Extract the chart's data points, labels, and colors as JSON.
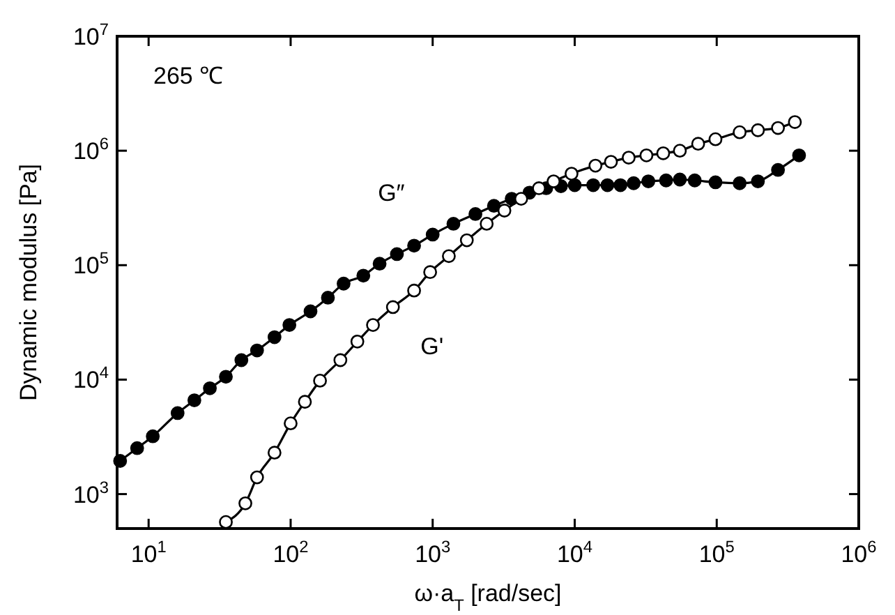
{
  "chart_data": {
    "type": "line",
    "title": "265 ℃",
    "xlabel": "ω·a$_{T}$ [rad/sec]",
    "ylabel": "Dynamic modulus [Pa]",
    "log": "xy",
    "xlim": [
      6,
      1000000
    ],
    "ylim": [
      500,
      10000000
    ],
    "xticks": [
      {
        "value": 10,
        "label": "10$^{1}$"
      },
      {
        "value": 100,
        "label": "10$^{2}$"
      },
      {
        "value": 1000,
        "label": "10$^{3}$"
      },
      {
        "value": 10000,
        "label": "10$^{4}$"
      },
      {
        "value": 100000,
        "label": "10$^{5}$"
      },
      {
        "value": 1000000,
        "label": "10$^{6}$"
      }
    ],
    "yticks": [
      {
        "value": 1000,
        "label": "10$^{3}$"
      },
      {
        "value": 10000,
        "label": "10$^{4}$"
      },
      {
        "value": 100000,
        "label": "10$^{5}$"
      },
      {
        "value": 1000000,
        "label": "10$^{6}$"
      },
      {
        "value": 10000000,
        "label": "10$^{7}$"
      }
    ],
    "grid": false,
    "marker": "circle",
    "line_style": "solid",
    "series": [
      {
        "name": "G″",
        "color": "#000000",
        "x": [
          6.3,
          8.3,
          10.7,
          16,
          21,
          27,
          35,
          45,
          58,
          77,
          98,
          138,
          183,
          236,
          325,
          423,
          560,
          740,
          1000,
          1400,
          2000,
          2700,
          3600,
          4800,
          6300,
          8000,
          10000,
          13500,
          17000,
          21000,
          26000,
          33000,
          44000,
          55000,
          70000,
          98000,
          145000,
          195000,
          270000,
          380000
        ],
        "values": [
          1950,
          2520,
          3200,
          5100,
          6600,
          8400,
          10600,
          14800,
          18000,
          23500,
          30000,
          39500,
          52000,
          69000,
          81000,
          103000,
          125000,
          148000,
          185000,
          230000,
          280000,
          330000,
          380000,
          430000,
          470000,
          490000,
          500000,
          500000,
          500000,
          500000,
          520000,
          540000,
          550000,
          560000,
          550000,
          530000,
          520000,
          540000,
          680000,
          910000
        ]
      },
      {
        "name": "G'",
        "color": "#ffffff",
        "x": [
          35,
          48,
          58,
          77,
          100,
          126,
          161,
          224,
          295,
          380,
          525,
          740,
          960,
          1300,
          1740,
          2400,
          3200,
          4200,
          5600,
          7100,
          9500,
          14000,
          18000,
          24000,
          32000,
          42000,
          55000,
          74000,
          98000,
          145000,
          195000,
          270000,
          355000
        ],
        "values": [
          570,
          830,
          1400,
          2300,
          4150,
          6400,
          9800,
          14800,
          21500,
          30000,
          43000,
          60000,
          87000,
          120000,
          165000,
          230000,
          300000,
          380000,
          470000,
          540000,
          630000,
          740000,
          800000,
          870000,
          910000,
          950000,
          1000000,
          1150000,
          1260000,
          1450000,
          1510000,
          1580000,
          1780000
        ]
      }
    ]
  }
}
